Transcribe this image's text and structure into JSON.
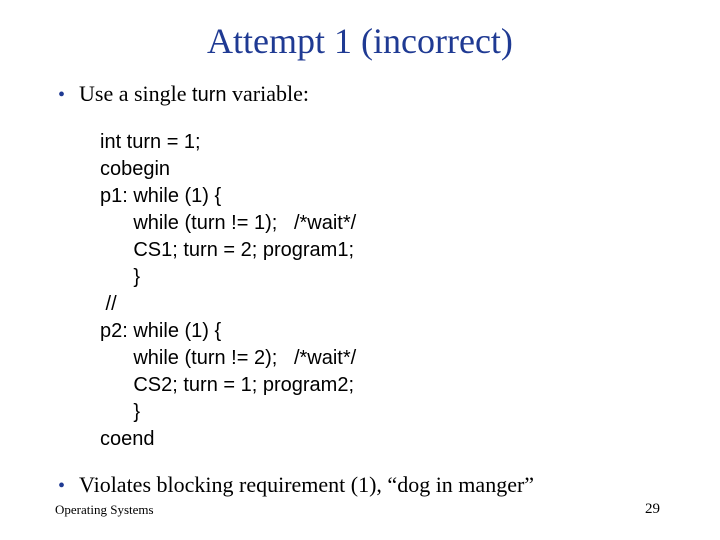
{
  "title": "Attempt 1 (incorrect)",
  "bullets": {
    "first_pre": "Use a single ",
    "first_kw": "turn",
    "first_post": " variable:",
    "second": "Violates blocking requirement (1), “dog in manger”"
  },
  "code": {
    "l1": "int turn = 1;",
    "l2": "cobegin",
    "l3": "p1: while (1) {",
    "l4": "      while (turn != 1);   /*wait*/",
    "l5": "      CS1; turn = 2; program1;",
    "l6": "      }",
    "l7": " //",
    "l8": "p2: while (1) {",
    "l9": "      while (turn != 2);   /*wait*/",
    "l10": "      CS2; turn = 1; program2;",
    "l11": "      }",
    "l12": "coend"
  },
  "footer": {
    "left": "Operating Systems",
    "page": "29"
  },
  "colors": {
    "title": "#1f3a93",
    "bullet": "#1f3a93",
    "text": "#000000",
    "background": "#ffffff"
  },
  "fonts": {
    "title_size": 36,
    "body_size": 22,
    "code_size": 20,
    "footer_left_size": 13,
    "footer_page_size": 15
  }
}
